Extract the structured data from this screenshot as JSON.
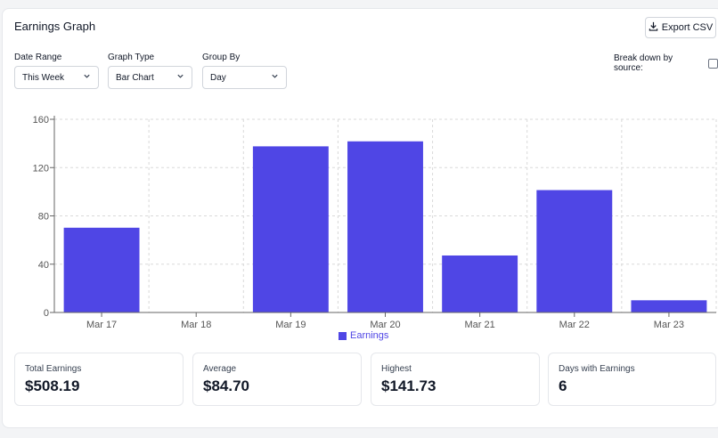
{
  "header": {
    "title": "Earnings Graph",
    "export_label": "Export CSV",
    "export_icon": "download-icon"
  },
  "controls": {
    "date_range": {
      "label": "Date Range",
      "value": "This Week"
    },
    "graph_type": {
      "label": "Graph Type",
      "value": "Bar Chart"
    },
    "group_by": {
      "label": "Group By",
      "value": "Day"
    },
    "breakdown": {
      "label": "Break down by source:",
      "checked": false
    }
  },
  "chart_data": {
    "type": "bar",
    "categories": [
      "Mar 17",
      "Mar 18",
      "Mar 19",
      "Mar 20",
      "Mar 21",
      "Mar 22",
      "Mar 23"
    ],
    "series": [
      {
        "name": "Earnings",
        "values": [
          70.2,
          0,
          137.6,
          141.73,
          47.2,
          101.36,
          10.1
        ]
      }
    ],
    "ylim": [
      0,
      160
    ],
    "yticks": [
      0,
      40,
      80,
      120,
      160
    ],
    "grid": true,
    "legend": "bottom",
    "color": "#4f46e5"
  },
  "legend": {
    "label": "Earnings"
  },
  "stats": {
    "total": {
      "label": "Total Earnings",
      "value": "$508.19"
    },
    "average": {
      "label": "Average",
      "value": "$84.70"
    },
    "highest": {
      "label": "Highest",
      "value": "$141.73"
    },
    "days": {
      "label": "Days with Earnings",
      "value": "6"
    }
  }
}
